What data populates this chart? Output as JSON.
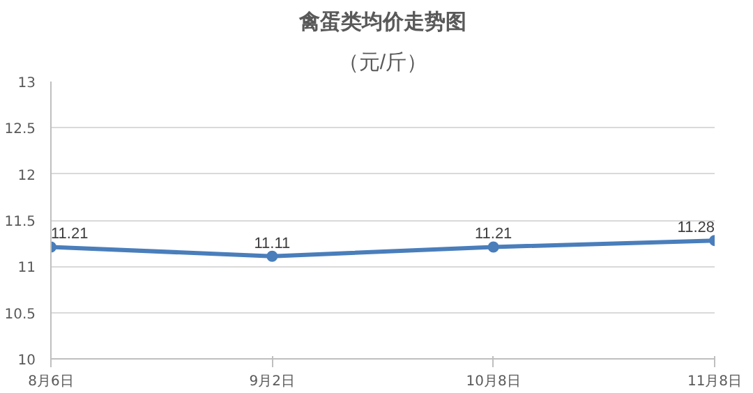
{
  "chart_data": {
    "type": "line",
    "title": "禽蛋类均价走势图",
    "subtitle": "（元/斤）",
    "categories": [
      "8月6日",
      "9月2日",
      "10月8日",
      "11月8日"
    ],
    "series": [
      {
        "color": "#4a7ebb",
        "values": [
          11.21,
          11.11,
          11.21,
          11.28
        ]
      }
    ],
    "ylim": [
      10,
      13
    ],
    "yticks": [
      10,
      10.5,
      11,
      11.5,
      12,
      12.5,
      13
    ],
    "grid": "y",
    "data_labels": true,
    "marker": "circle",
    "line_style": "solid"
  }
}
